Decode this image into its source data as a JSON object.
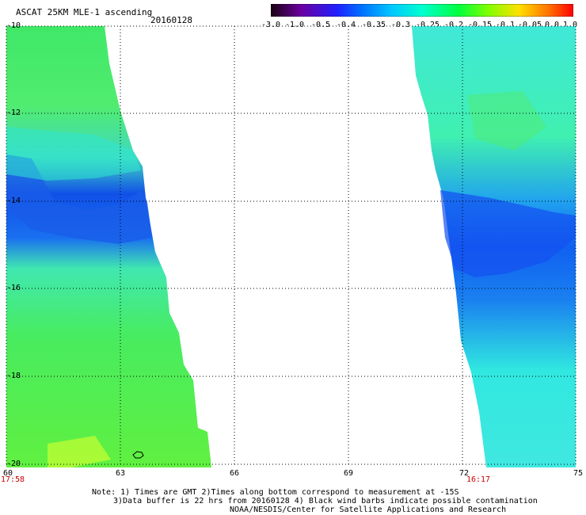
{
  "header": {
    "title": "ASCAT 25KM MLE-1 ascending",
    "date": "20160128"
  },
  "colorbar": {
    "labels": [
      "-3.0",
      "-1.0",
      "-0.5",
      "-0.4",
      "-0.35",
      "-0.3",
      "-0.25",
      "-0.2",
      "-0.15",
      "-0.1",
      "-0.05",
      "0.0",
      "1.0"
    ],
    "colors": [
      "#3a0030",
      "#7a00b0",
      "#2020ff",
      "#0050ff",
      "#0090ff",
      "#00d0ff",
      "#00ffc8",
      "#00ff50",
      "#50ff00",
      "#c8ff00",
      "#ffc800",
      "#ff6000",
      "#ff0000"
    ]
  },
  "axes": {
    "lat_labels": [
      "-10",
      "-12",
      "-14",
      "-16",
      "-18",
      "-20"
    ],
    "lon_labels": [
      "60",
      "63",
      "66",
      "69",
      "72",
      "75"
    ],
    "lat_range": [
      -20,
      -10
    ],
    "lon_range": [
      60,
      75
    ]
  },
  "swath_times": {
    "left": "17:58",
    "right": "16:17"
  },
  "notes": {
    "line1": "Note: 1) Times are GMT 2)Times along bottom correspond to measurement at -15S",
    "line2": "3)Data buffer is 22 hrs from 20160128 4) Black wind barbs indicate possible contamination",
    "line3": "NOAA/NESDIS/Center for Satellite Applications and Research"
  },
  "swath_colors": {
    "green": "#40e868",
    "cyan": "#30f0e0",
    "blue": "#1060f0",
    "yellow": "#e8ff20"
  }
}
